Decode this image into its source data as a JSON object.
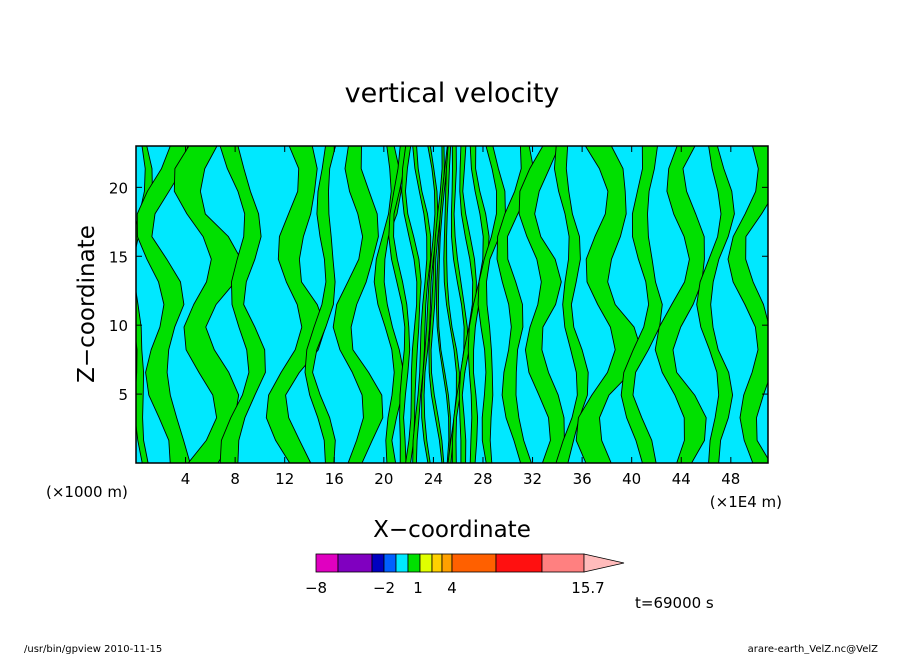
{
  "chart_data": {
    "type": "heatmap",
    "title": "vertical velocity",
    "xlabel": "X−coordinate",
    "ylabel": "Z−coordinate",
    "x_unit_left": "(×1000 m)",
    "x_unit_right": "(×1E4 m)",
    "xlim": [
      0,
      51
    ],
    "ylim": [
      0,
      23
    ],
    "x_ticks": [
      4,
      8,
      12,
      16,
      20,
      24,
      28,
      32,
      36,
      40,
      44,
      48
    ],
    "y_ticks": [
      5,
      10,
      15,
      20
    ],
    "field_colors": {
      "negative": "#00e8ff",
      "positive": "#00e000",
      "contour": "#000000"
    },
    "colorbar": {
      "colors": [
        "#e000c0",
        "#8000c0",
        "#0000c0",
        "#0060ff",
        "#00e8ff",
        "#00e000",
        "#e0ff00",
        "#ffd000",
        "#ffa000",
        "#ff6000",
        "#ff1010",
        "#ff8080",
        "#ffbbbb"
      ],
      "tick_labels": [
        "−8",
        "−2",
        "1",
        "4",
        "15.7"
      ]
    },
    "annotation": "t=69000 s",
    "footer_left": "/usr/bin/gpview   2010-11-15",
    "footer_right": "arare-earth_VelZ.nc@VelZ"
  }
}
